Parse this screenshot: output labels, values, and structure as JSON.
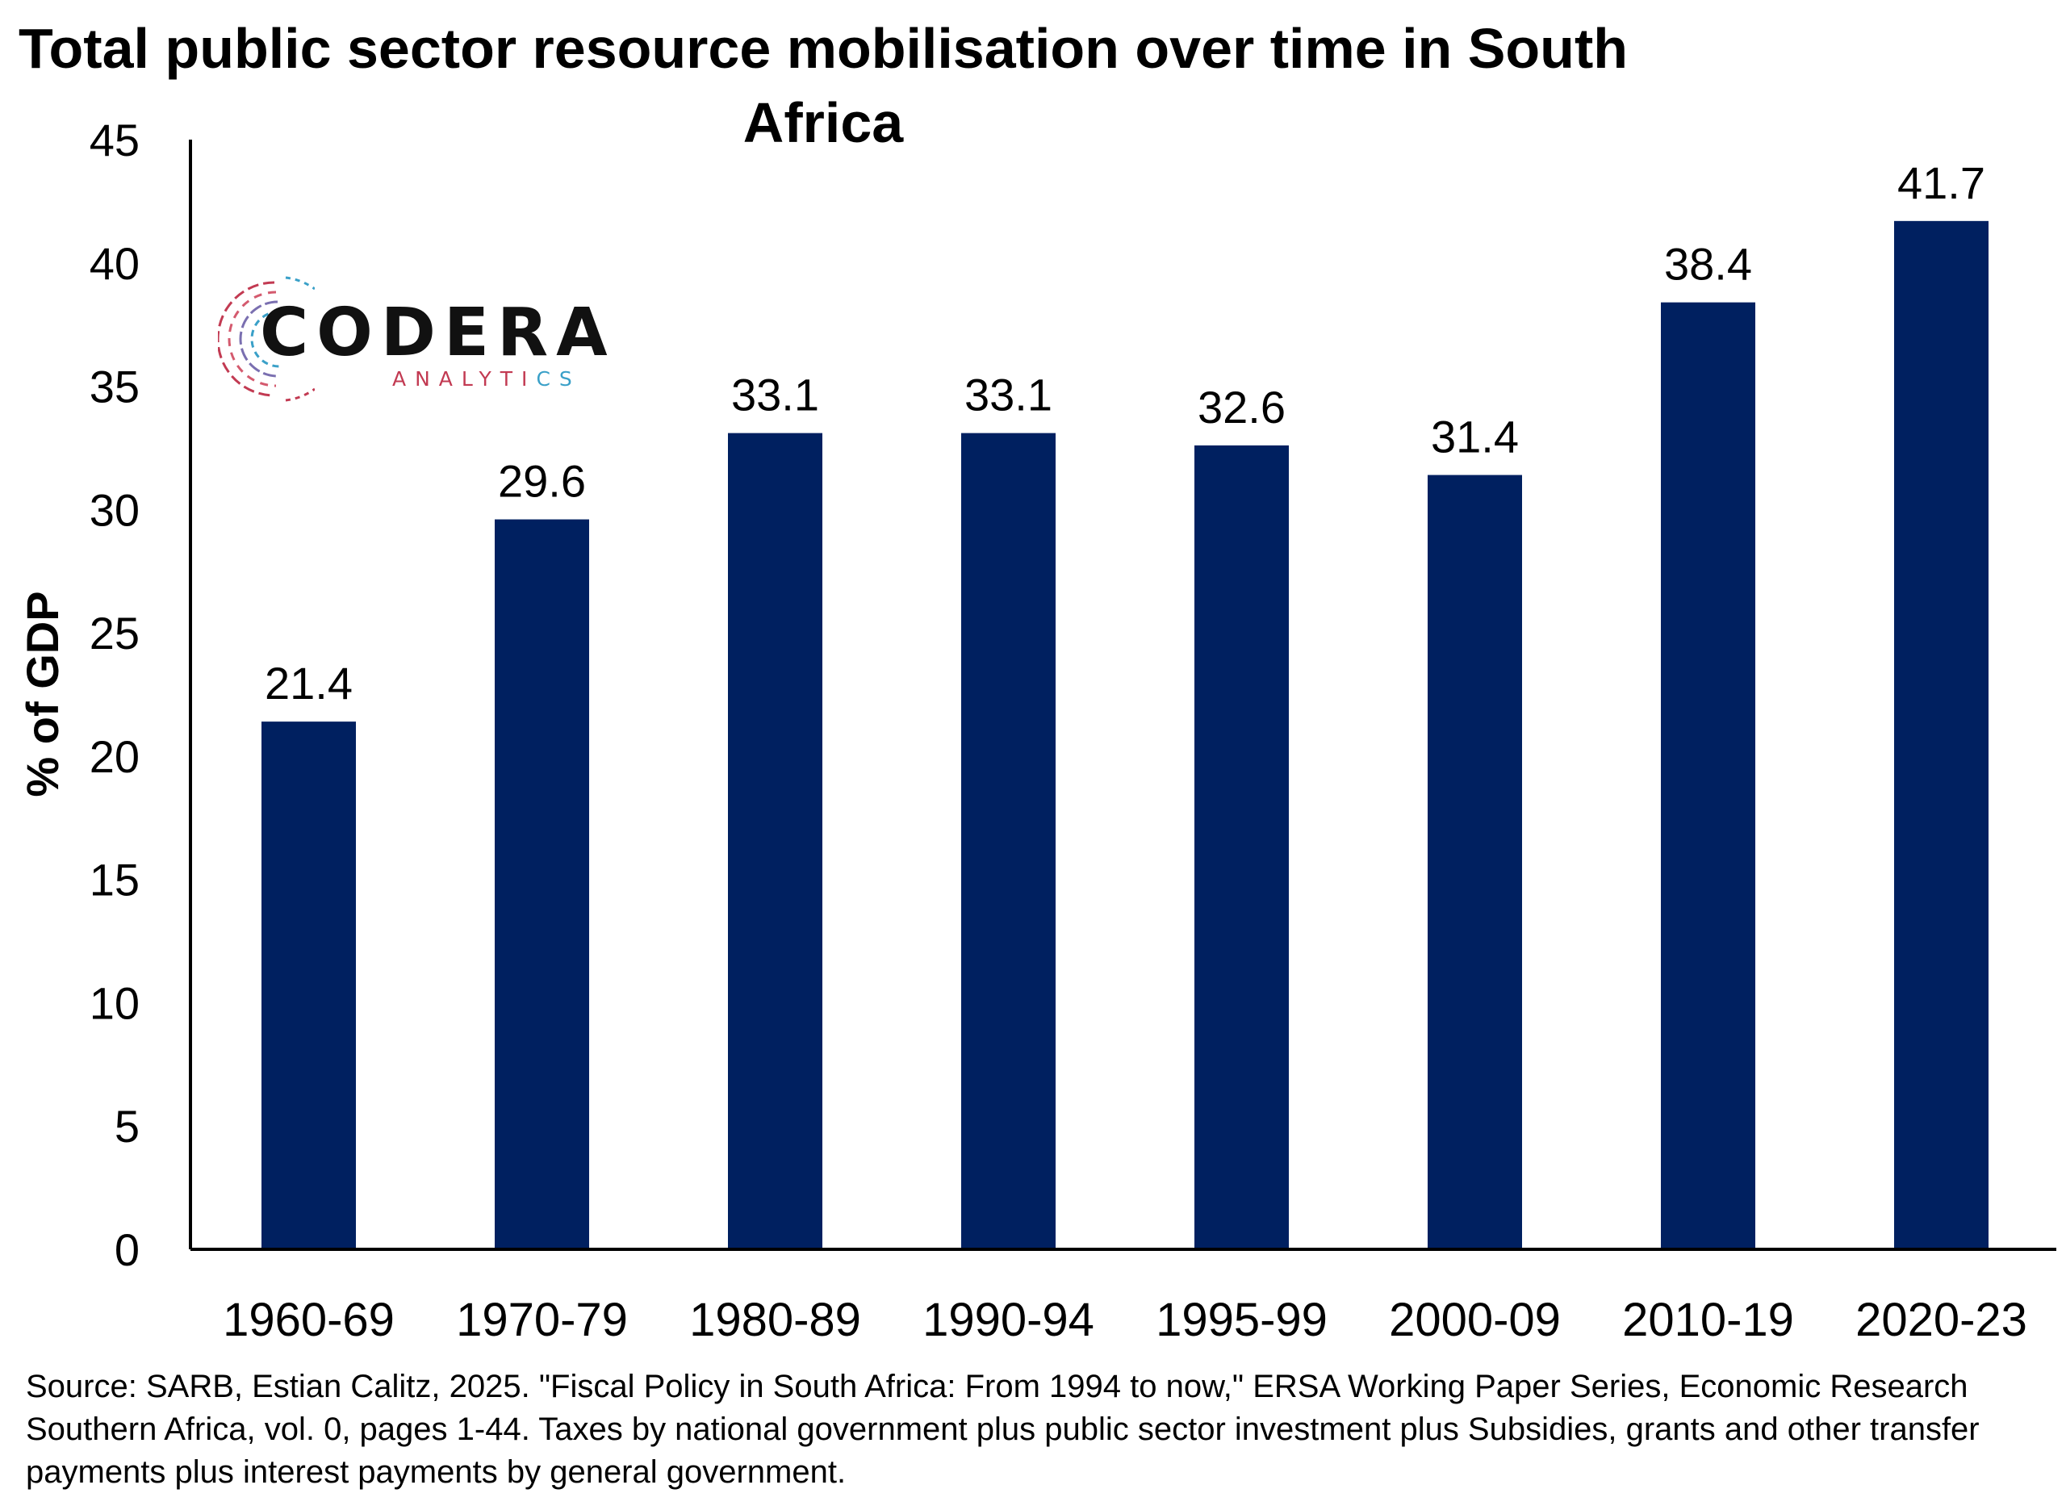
{
  "chart_data": {
    "type": "bar",
    "title": "Total public sector resource mobilisation over time in South Africa",
    "ylabel": "% of GDP",
    "xlabel": "",
    "categories": [
      "1960-69",
      "1970-79",
      "1980-89",
      "1990-94",
      "1995-99",
      "2000-09",
      "2010-19",
      "2020-23"
    ],
    "values": [
      21.4,
      29.6,
      33.1,
      33.1,
      32.6,
      31.4,
      38.4,
      41.7
    ],
    "value_labels": [
      "21.4",
      "29.6",
      "33.1",
      "33.1",
      "32.6",
      "31.4",
      "38.4",
      "41.7"
    ],
    "ylim": [
      0,
      45
    ],
    "yticks": [
      "0",
      "5",
      "10",
      "15",
      "20",
      "25",
      "30",
      "35",
      "40",
      "45"
    ],
    "grid": false,
    "bar_color": "#002060",
    "legend": "none"
  },
  "logo": {
    "name": "CODERA",
    "sub": "ANALYTICS",
    "colors": {
      "red": "#c23a52",
      "blue": "#3aa0c8"
    }
  },
  "source_note": "Source: SARB, Estian Calitz, 2025. \"Fiscal Policy in South Africa: From 1994 to now,\" ERSA Working Paper Series, Economic Research Southern Africa, vol. 0, pages 1-44. Taxes by national government plus public sector investment plus Subsidies, grants and other transfer payments plus interest payments by general government."
}
